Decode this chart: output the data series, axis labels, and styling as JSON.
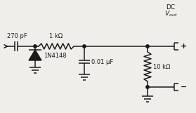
{
  "bg_color": "#f0eeea",
  "line_color": "#1a1a1a",
  "lw": 1.1,
  "figsize": [
    2.79,
    1.61
  ],
  "dpi": 100,
  "components": {
    "cap1_label": "270 pF",
    "res1_label": "1 kΩ",
    "diode_label": "1N4148",
    "cap2_label": "0.01 μF",
    "res2_label": "10 kΩ",
    "plus_label": "+",
    "minus_label": "−",
    "dc_label": "DC",
    "vout_label": "$V_{out}$"
  }
}
